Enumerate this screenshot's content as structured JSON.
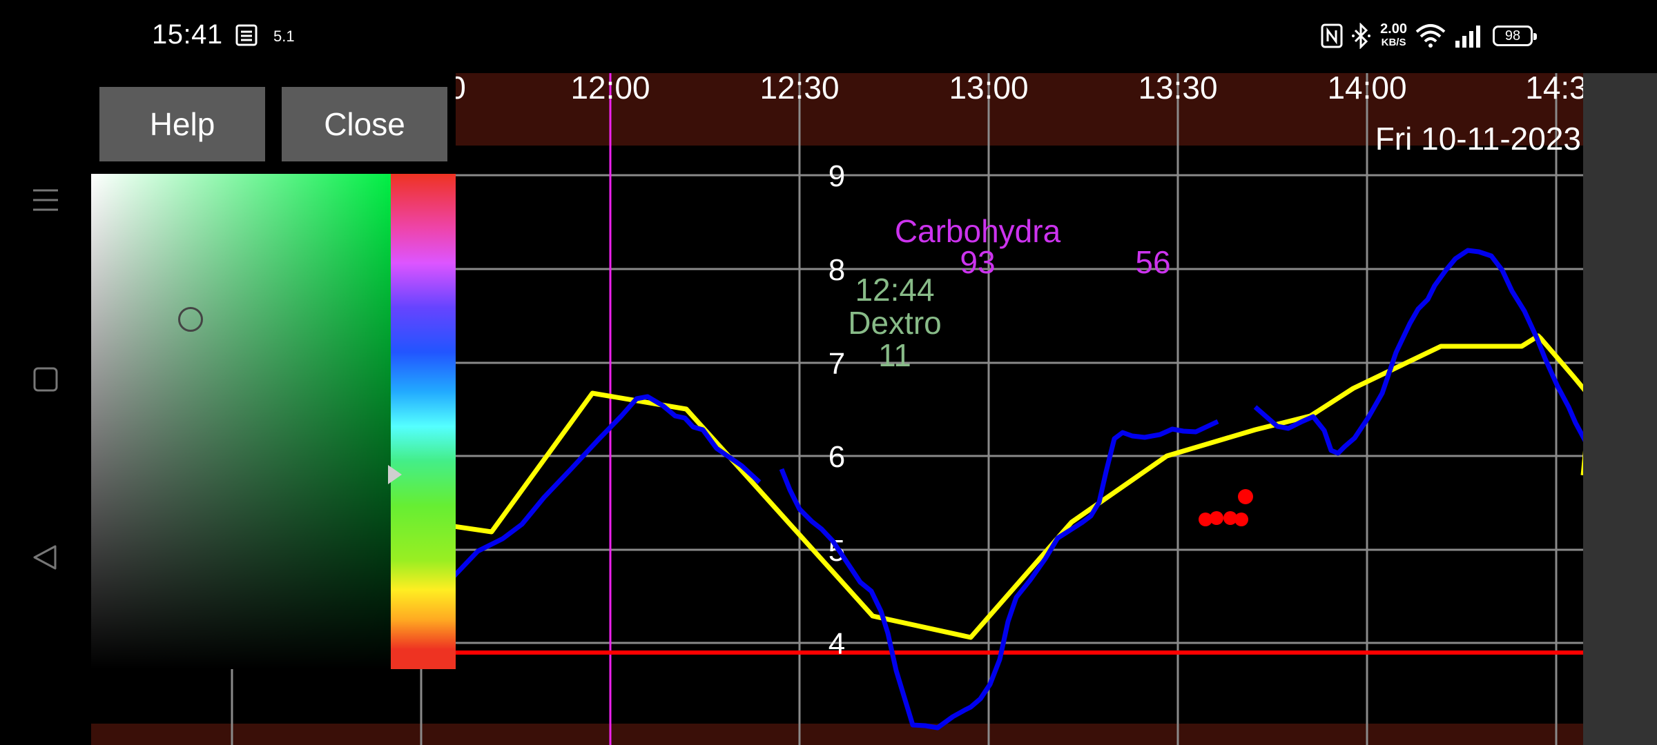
{
  "status_bar": {
    "time": "15:41",
    "small_indicator": "5.1",
    "net_rate": "2.00",
    "net_unit": "KB/S",
    "battery": "98",
    "icons": [
      "notification-list-icon",
      "nfc-icon",
      "bluetooth-icon",
      "wifi-icon",
      "signal-icon",
      "battery-icon"
    ]
  },
  "color_picker": {
    "help_label": "Help",
    "close_label": "Close"
  },
  "nav": {
    "icons": [
      "menu-icon",
      "home-square-icon",
      "back-triangle-icon"
    ]
  },
  "chart": {
    "date_label": "Fri 10-11-2023",
    "x_ticks": [
      "0",
      "12:00",
      "12:30",
      "13:00",
      "13:30",
      "14:00",
      "14:3"
    ],
    "y_ticks": [
      "9",
      "8",
      "7",
      "6",
      "5",
      "4"
    ],
    "annotations": {
      "carbs_label": "Carbohydra",
      "carbs_value_1": "93",
      "carbs_value_2": "56",
      "dextro_time": "12:44",
      "dextro_label": "Dextro",
      "dextro_value": "11"
    },
    "colors": {
      "background_band": "#3a0f08",
      "plot_bg": "#000000",
      "grid": "#8a8a8a",
      "glucose_line": "#0000ee",
      "trend_line": "#ffff00",
      "low_limit": "#ff0000",
      "now_marker": "#ee22ee",
      "carbs_text": "#cc33ee",
      "dextro_text": "#88bb88",
      "points": "#ff0000"
    }
  }
}
